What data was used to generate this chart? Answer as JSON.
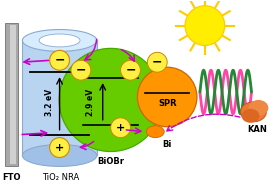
{
  "bg_color": "#ffffff",
  "fto_color": "#b0b0b0",
  "tio2_color": "#b8d4f0",
  "biobr_color": "#66cc00",
  "bi_color": "#ff8c00",
  "bi_spr_color": "#ff9500",
  "kan_color": "#ee7733",
  "sun_color": "#ffee00",
  "arrow_color": "#cc00cc",
  "wave_green": "#228833",
  "wave_pink": "#ff44aa",
  "electron_ring_color": "#ffaa00",
  "label_fto": "FTO",
  "label_tio2": "TiO₂ NRA",
  "label_biobr": "BiOBr",
  "label_bi": "Bi",
  "label_spr": "SPR",
  "label_kan": "KAN",
  "label_32": "3.2 eV",
  "label_29": "2.9 eV"
}
